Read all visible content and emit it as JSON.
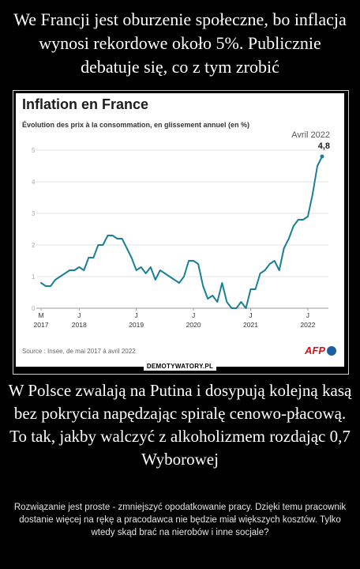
{
  "meme": {
    "top_title": "We Francji jest oburzenie społeczne, bo inflacja wynosi rekordowe około 5%. Publicznie debatuje się, co z tym zrobić",
    "watermark": "DEMOTYWATORY.PL",
    "headline": "W Polsce zwalają na Putina i dosypują kolejną kasą bez pokrycia napędzając spiralę cenowo-płacową. To tak, jakby walczyć z alkoholizmem rozdając 0,7 Wyborowej",
    "caption": "Rozwiązanie jest proste - zmniejszyć opodatkowanie pracy. Dzięki temu pracownik dostanie więcej na rękę a pracodawca nie będzie miał większych kosztów. Tylko wtedy skąd brać na nierobów i inne socjale?"
  },
  "card": {
    "source": "Source : Insee, de mai 2017 à avril 2022",
    "logo": "AFP"
  },
  "chart_data": {
    "type": "line",
    "title": "Inflation en France",
    "subtitle": "Évolution des prix à la consommation, en glissement annuel (en %)",
    "ylim": [
      0,
      5
    ],
    "y_ticks": [
      "0",
      "1",
      "2",
      "3",
      "4",
      "5"
    ],
    "grid": true,
    "x_range": [
      "2017-05",
      "2022-04"
    ],
    "x_tick_labels": [
      {
        "month": "M",
        "year": "2017",
        "date": "2017-05"
      },
      {
        "month": "J",
        "year": "2018",
        "date": "2018-01"
      },
      {
        "month": "J",
        "year": "2019",
        "date": "2019-01"
      },
      {
        "month": "J",
        "year": "2020",
        "date": "2020-01"
      },
      {
        "month": "J",
        "year": "2021",
        "date": "2021-01"
      },
      {
        "month": "J",
        "year": "2022",
        "date": "2022-01"
      }
    ],
    "annotation": {
      "label": "Avril 2022",
      "value_label": "4,8"
    },
    "line_color": "#1b7f96",
    "series": [
      {
        "x": [
          "2017-05",
          "2017-06",
          "2017-07",
          "2017-08",
          "2017-09",
          "2017-10",
          "2017-11",
          "2017-12",
          "2018-01",
          "2018-02",
          "2018-03",
          "2018-04",
          "2018-05",
          "2018-06",
          "2018-07",
          "2018-08",
          "2018-09",
          "2018-10",
          "2018-11",
          "2018-12",
          "2019-01",
          "2019-02",
          "2019-03",
          "2019-04",
          "2019-05",
          "2019-06",
          "2019-07",
          "2019-08",
          "2019-09",
          "2019-10",
          "2019-11",
          "2019-12",
          "2020-01",
          "2020-02",
          "2020-03",
          "2020-04",
          "2020-05",
          "2020-06",
          "2020-07",
          "2020-08",
          "2020-09",
          "2020-10",
          "2020-11",
          "2020-12",
          "2021-01",
          "2021-02",
          "2021-03",
          "2021-04",
          "2021-05",
          "2021-06",
          "2021-07",
          "2021-08",
          "2021-09",
          "2021-10",
          "2021-11",
          "2021-12",
          "2022-01",
          "2022-02",
          "2022-03",
          "2022-04"
        ],
        "values": [
          0.8,
          0.7,
          0.7,
          0.9,
          1.0,
          1.1,
          1.2,
          1.2,
          1.3,
          1.2,
          1.6,
          1.6,
          2.0,
          2.0,
          2.3,
          2.3,
          2.2,
          2.2,
          1.9,
          1.6,
          1.2,
          1.3,
          1.1,
          1.3,
          0.9,
          1.2,
          1.1,
          1.0,
          0.9,
          0.8,
          1.0,
          1.5,
          1.5,
          1.4,
          0.7,
          0.3,
          0.4,
          0.2,
          0.8,
          0.2,
          0.0,
          0.0,
          0.2,
          0.0,
          0.6,
          0.6,
          1.1,
          1.2,
          1.4,
          1.5,
          1.2,
          1.9,
          2.2,
          2.6,
          2.8,
          2.8,
          2.9,
          3.6,
          4.5,
          4.8
        ]
      }
    ]
  }
}
